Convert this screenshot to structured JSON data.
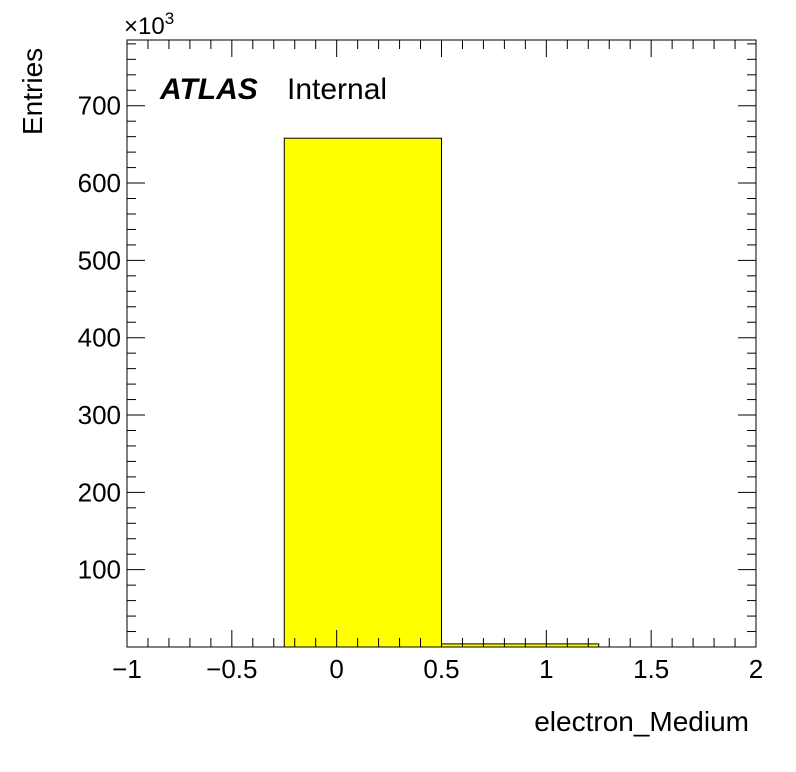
{
  "chart_data": {
    "type": "bar",
    "bins": [
      {
        "x_low": -0.25,
        "x_high": 0.5,
        "value": 658000
      },
      {
        "x_low": 0.5,
        "x_high": 1.25,
        "value": 4000
      }
    ],
    "xlabel": "electron_Medium",
    "ylabel": "Entries",
    "xlim": [
      -1,
      2
    ],
    "ylim": [
      0,
      785000
    ],
    "x_ticks": [
      -1,
      -0.5,
      0,
      0.5,
      1,
      1.5,
      2
    ],
    "x_tick_labels": [
      "−1",
      "−0.5",
      "0",
      "0.5",
      "1",
      "1.5",
      "2"
    ],
    "y_ticks": [
      100000,
      200000,
      300000,
      400000,
      500000,
      600000,
      700000
    ],
    "y_tick_labels": [
      "100",
      "200",
      "300",
      "400",
      "500",
      "600",
      "700"
    ],
    "y_multiplier": "×10",
    "y_multiplier_exp": "3",
    "atlas_label": "ATLAS",
    "atlas_status": "Internal",
    "bar_color": "#ffff00",
    "grid": false,
    "legend": "none"
  }
}
